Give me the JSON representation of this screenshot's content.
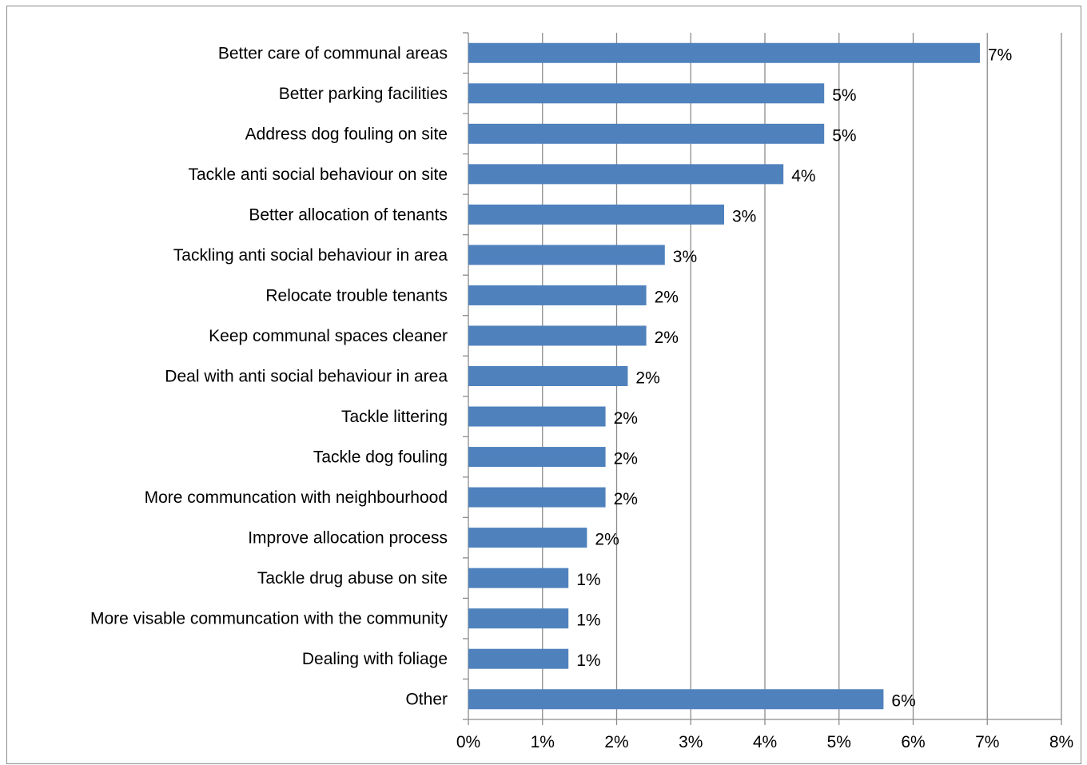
{
  "chart_data": {
    "type": "bar",
    "orientation": "horizontal",
    "categories": [
      "Better care of communal areas",
      "Better parking facilities",
      "Address dog fouling on site",
      "Tackle anti social behaviour on site",
      "Better allocation of tenants",
      "Tackling anti social behaviour in area",
      "Relocate trouble tenants",
      "Keep communal spaces cleaner",
      "Deal with anti social behaviour in area",
      "Tackle littering",
      "Tackle dog fouling",
      "More communcation with neighbourhood",
      "Improve allocation process",
      "Tackle drug abuse on site",
      "More visable communcation with the community",
      "Dealing with foliage",
      "Other"
    ],
    "values": [
      6.9,
      4.8,
      4.8,
      4.25,
      3.45,
      2.65,
      2.4,
      2.4,
      2.15,
      1.85,
      1.85,
      1.85,
      1.6,
      1.35,
      1.35,
      1.35,
      5.6
    ],
    "value_labels": [
      "7%",
      "5%",
      "5%",
      "4%",
      "3%",
      "3%",
      "2%",
      "2%",
      "2%",
      "2%",
      "2%",
      "2%",
      "2%",
      "1%",
      "1%",
      "1%",
      "6%"
    ],
    "xlim": [
      0,
      8
    ],
    "x_ticks": [
      "0%",
      "1%",
      "2%",
      "3%",
      "4%",
      "5%",
      "6%",
      "7%",
      "8%"
    ],
    "grid": "vertical",
    "legend": "none",
    "colors": {
      "bar": "#4f81bd",
      "grid": "#8c8c8c",
      "axis": "#8c8c8c",
      "text": "#000000"
    }
  }
}
